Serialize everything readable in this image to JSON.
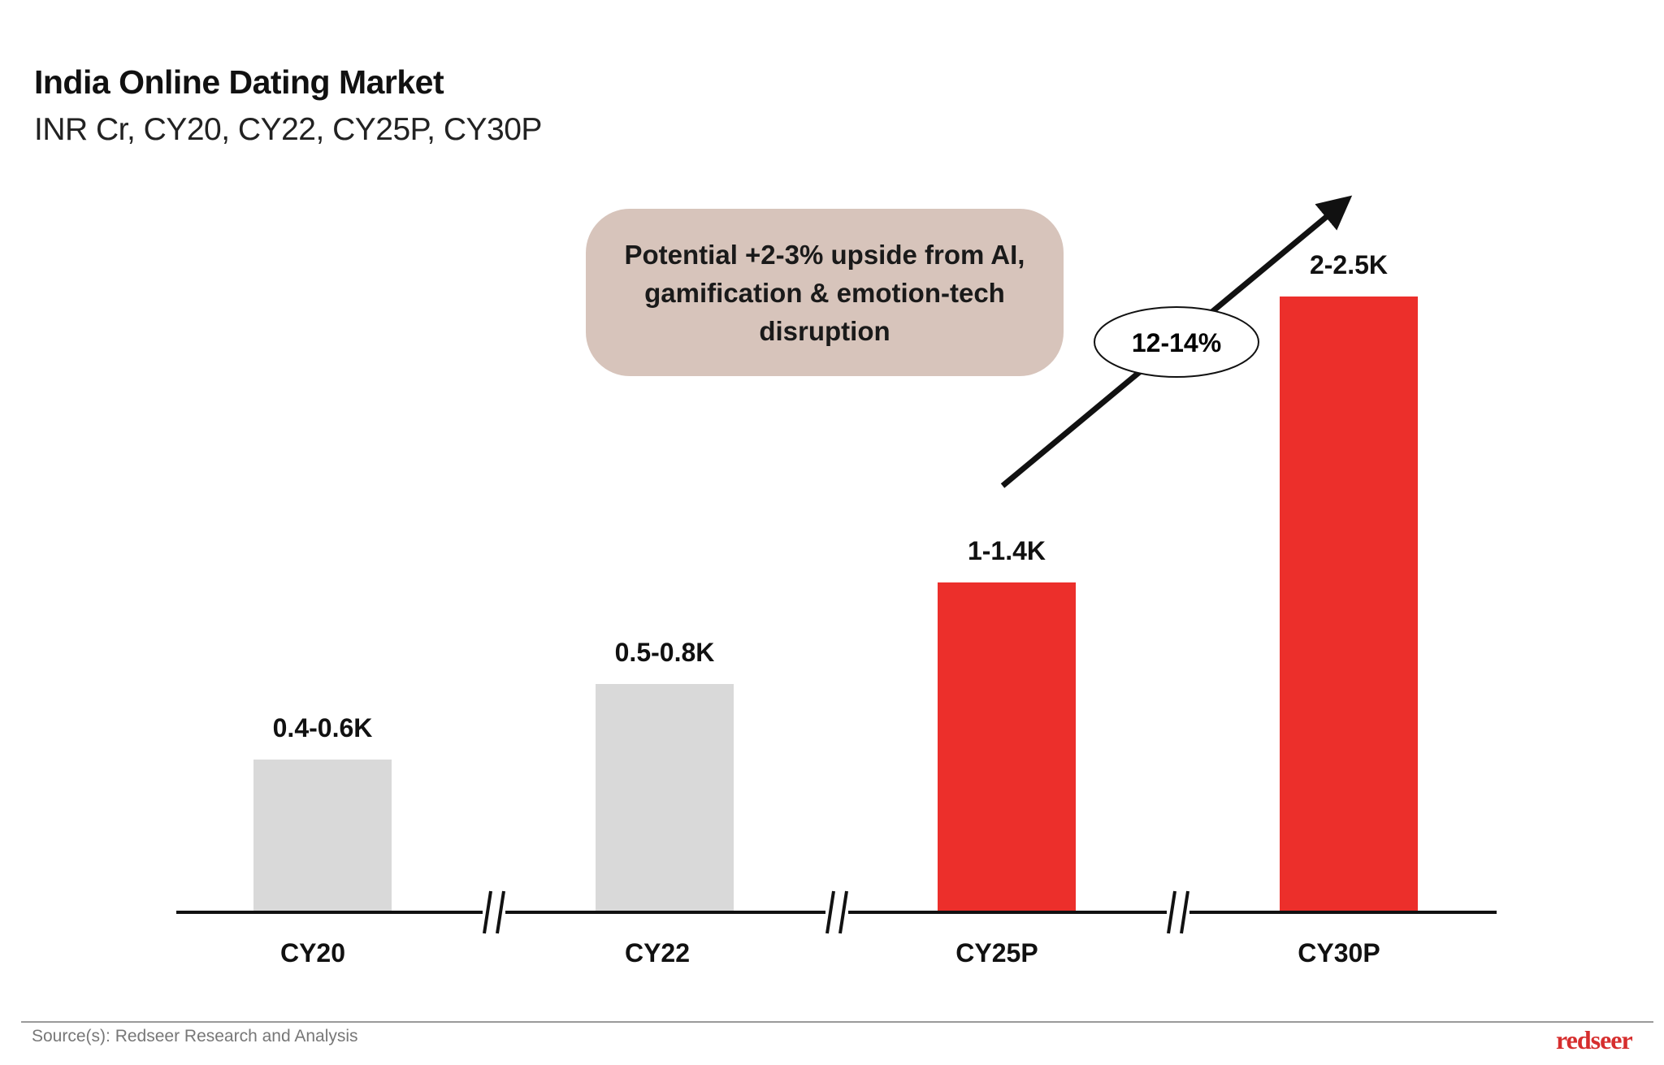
{
  "chart_data": {
    "type": "bar",
    "title": "India Online Dating Market",
    "subtitle": "INR Cr, CY20, CY22, CY25P, CY30P",
    "categories": [
      "CY20",
      "CY22",
      "CY25P",
      "CY30P"
    ],
    "values_low": [
      400,
      500,
      1000,
      2000
    ],
    "values_high": [
      600,
      800,
      1400,
      2500
    ],
    "data_labels": [
      "0.4-0.6K",
      "0.5-0.8K",
      "1-1.4K",
      "2-2.5K"
    ],
    "bar_colors": [
      "#d9d9d9",
      "#d9d9d9",
      "#ec2f2b",
      "#ec2f2b"
    ],
    "axis_breaks": true,
    "grid": false,
    "annotations": {
      "cagr_label": "12-14%",
      "callout_text": "Potential +2-3% upside from AI, gamification & emotion-tech disruption",
      "callout_color": "#d7c4bb"
    }
  },
  "footer": {
    "source": "Source(s): Redseer Research and Analysis",
    "logo_text": "redseer"
  }
}
